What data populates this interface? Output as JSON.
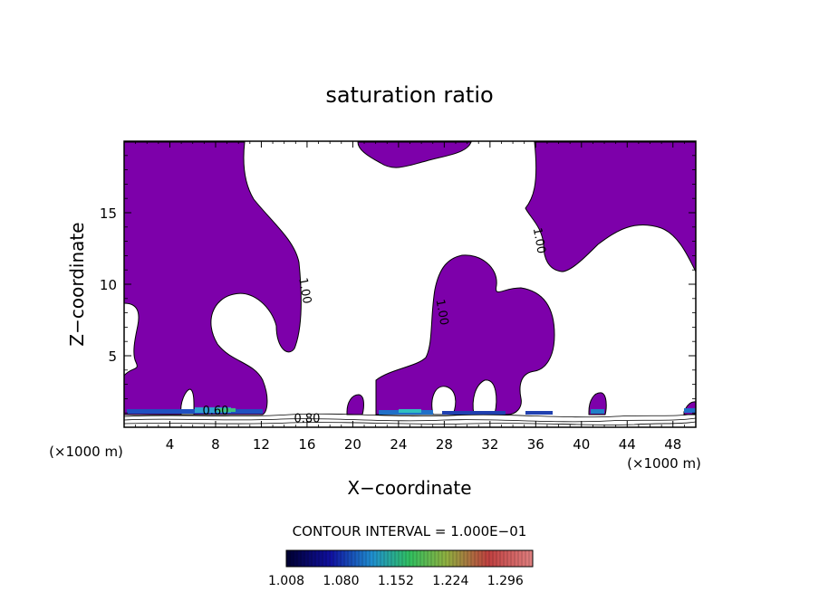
{
  "chart_data": {
    "type": "contour",
    "title": "saturation ratio",
    "xlabel": "X−coordinate",
    "ylabel": "Z−coordinate",
    "x_unit_left": "(×1000 m)",
    "x_unit_right": "(×1000 m)",
    "xlim": [
      0,
      50
    ],
    "ylim": [
      0,
      20
    ],
    "x_ticks": [
      4,
      8,
      12,
      16,
      20,
      24,
      28,
      32,
      36,
      40,
      44,
      48
    ],
    "y_ticks": [
      5,
      10,
      15
    ],
    "contour_labels": [
      {
        "text": "1.00",
        "x": 15.5,
        "y": 9.5
      },
      {
        "text": "1.00",
        "x": 27.5,
        "y": 8.0
      },
      {
        "text": "1.00",
        "x": 36.0,
        "y": 13.0
      },
      {
        "text": "0.60",
        "x": 8.0,
        "y": 0.9
      },
      {
        "text": "0.80",
        "x": 16.0,
        "y": 0.35
      }
    ],
    "fill_color": "#7d00aa",
    "contour_interval_text": "CONTOUR INTERVAL = 1.000E−01",
    "colorbar": {
      "tick_labels": [
        "1.008",
        "1.080",
        "1.152",
        "1.224",
        "1.296"
      ],
      "range": [
        1.008,
        1.332
      ]
    }
  }
}
